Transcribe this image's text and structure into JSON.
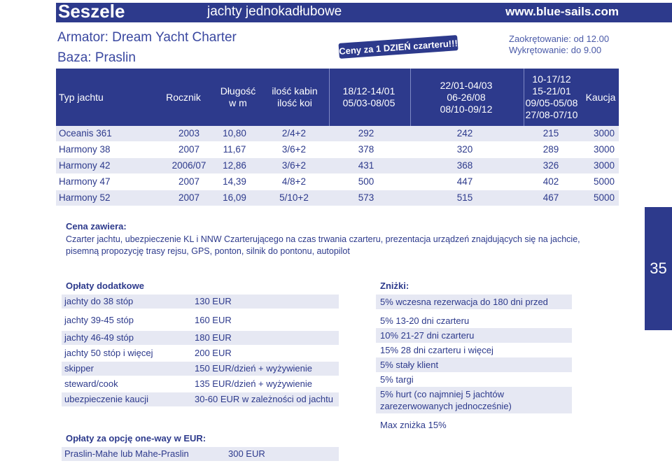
{
  "header": {
    "country": "Seszele",
    "boat_type": "jachty jednokadłubowe",
    "website": "www.blue-sails.com"
  },
  "owner": "Armator: Dream Yacht Charter",
  "base": "Baza: Praslin",
  "price_badge": "Ceny za 1 DZIEŃ czarteru!!!",
  "checkin": "Zaokrętowanie: od 12.00",
  "checkout": "Wykrętowanie: do 9.00",
  "table": {
    "headers": {
      "type": "Typ jachtu",
      "year": "Rocznik",
      "length": "Długość\nw m",
      "cabins": "ilość kabin\nilość koi",
      "season1": "18/12-14/01\n05/03-08/05",
      "season2": "22/01-04/03\n06-26/08\n08/10-09/12",
      "season3": "10-17/12\n15-21/01\n09/05-05/08\n27/08-07/10",
      "deposit": "Kaucja"
    },
    "rows": [
      [
        "Oceanis 361",
        "2003",
        "10,80",
        "2/4+2",
        "292",
        "242",
        "215",
        "3000"
      ],
      [
        "Harmony 38",
        "2007",
        "11,67",
        "3/6+2",
        "378",
        "320",
        "289",
        "3000"
      ],
      [
        "Harmony 42",
        "2006/07",
        "12,86",
        "3/6+2",
        "431",
        "368",
        "326",
        "3000"
      ],
      [
        "Harmony 47",
        "2007",
        "14,39",
        "4/8+2",
        "500",
        "447",
        "402",
        "5000"
      ],
      [
        "Harmony 52",
        "2007",
        "16,09",
        "5/10+2",
        "573",
        "515",
        "467",
        "5000"
      ]
    ]
  },
  "includes": {
    "title": "Cena zawiera:",
    "text": "Czarter jachtu, ubezpieczenie KL i NNW Czarterującego na czas trwania czarteru, prezentacja  urządzeń znajdujących się na jachcie, pisemną propozycję trasy rejsu, GPS, ponton, silnik do pontonu, autopilot"
  },
  "page_number": "35",
  "fees": {
    "title": "Opłaty dodatkowe",
    "items": [
      {
        "label": "jachty do 38 stóp",
        "value": "130 EUR"
      },
      {
        "label": "jachty 39-45 stóp",
        "value": "160 EUR"
      },
      {
        "label": "jachty 46-49 stóp",
        "value": "180 EUR"
      },
      {
        "label": "jachty 50 stóp i więcej",
        "value": "200 EUR"
      },
      {
        "label": "skipper",
        "value": "150 EUR/dzień + wyżywienie"
      },
      {
        "label": "steward/cook",
        "value": "135 EUR/dzień + wyżywienie"
      },
      {
        "label": "ubezpieczenie kaucji",
        "value": "30-60 EUR w zależności od jachtu"
      }
    ]
  },
  "oneway": {
    "title": "Opłaty za opcję one-way w EUR:",
    "label": "Praslin-Mahe lub Mahe-Praslin",
    "value": "300 EUR"
  },
  "discounts": {
    "title": "Zniżki:",
    "items": [
      "5% wczesna rezerwacja do 180 dni przed",
      "5% 13-20 dni czarteru",
      "10% 21-27 dni czarteru",
      "15% 28 dni czarteru i więcej",
      "5% stały klient",
      "5% targi",
      "5% hurt (co najmniej 5 jachtów zarezerwowanych jednocześnie)",
      "Max zniżka 15%"
    ]
  },
  "colors": {
    "primary": "#2d3a8c",
    "row_alt": "#e6e8f3"
  }
}
